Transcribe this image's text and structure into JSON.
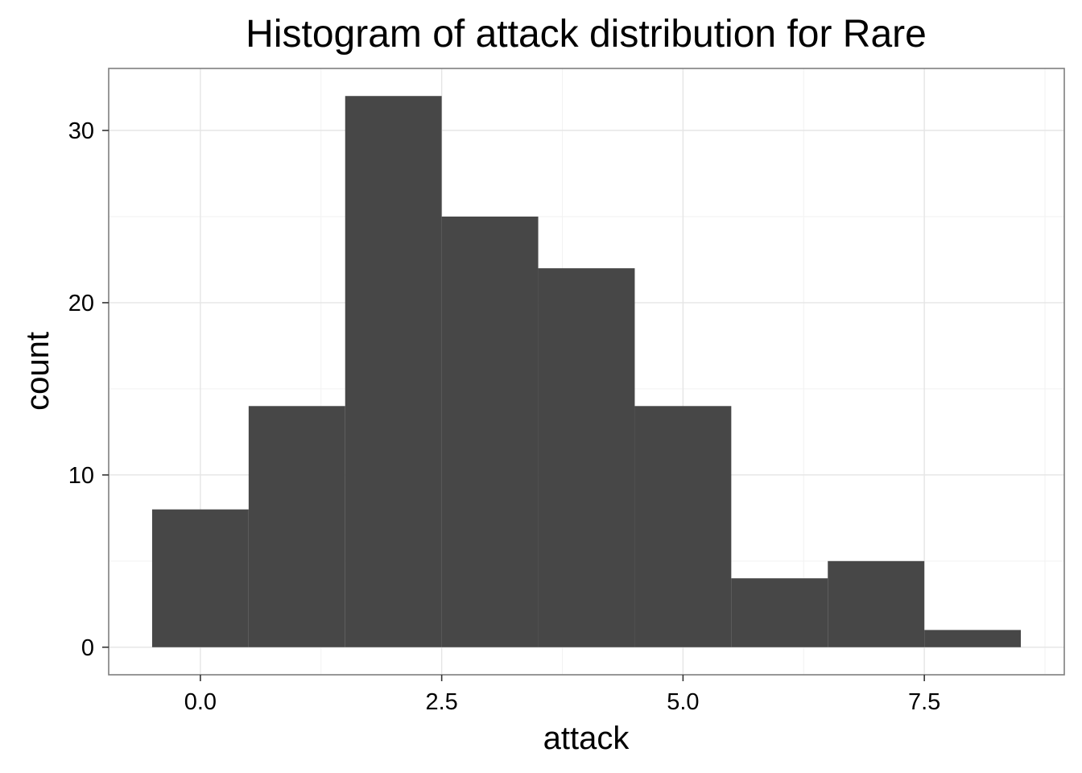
{
  "chart_data": {
    "type": "bar",
    "title": "Histogram of attack distribution for Rare",
    "xlabel": "attack",
    "ylabel": "count",
    "bins": [
      {
        "x0": -0.5,
        "x1": 0.5,
        "count": 8
      },
      {
        "x0": 0.5,
        "x1": 1.5,
        "count": 14
      },
      {
        "x0": 1.5,
        "x1": 2.5,
        "count": 32
      },
      {
        "x0": 2.5,
        "x1": 3.5,
        "count": 25
      },
      {
        "x0": 3.5,
        "x1": 4.5,
        "count": 22
      },
      {
        "x0": 4.5,
        "x1": 5.5,
        "count": 14
      },
      {
        "x0": 5.5,
        "x1": 6.5,
        "count": 4
      },
      {
        "x0": 6.5,
        "x1": 7.5,
        "count": 5
      },
      {
        "x0": 7.5,
        "x1": 8.5,
        "count": 1
      }
    ],
    "xlim": [
      -0.95,
      8.95
    ],
    "ylim": [
      -1.6,
      33.6
    ],
    "x_ticks": [
      0,
      2.5,
      5,
      7.5
    ],
    "x_tick_labels": [
      "0.0",
      "2.5",
      "5.0",
      "7.5"
    ],
    "x_minor_ticks": [
      1.25,
      3.75,
      6.25,
      8.75
    ],
    "y_ticks": [
      0,
      10,
      20,
      30
    ],
    "y_tick_labels": [
      "0",
      "10",
      "20",
      "30"
    ],
    "y_minor_ticks": [
      5,
      15,
      25
    ],
    "grid": true,
    "legend": "none",
    "bar_color": "#474747"
  }
}
